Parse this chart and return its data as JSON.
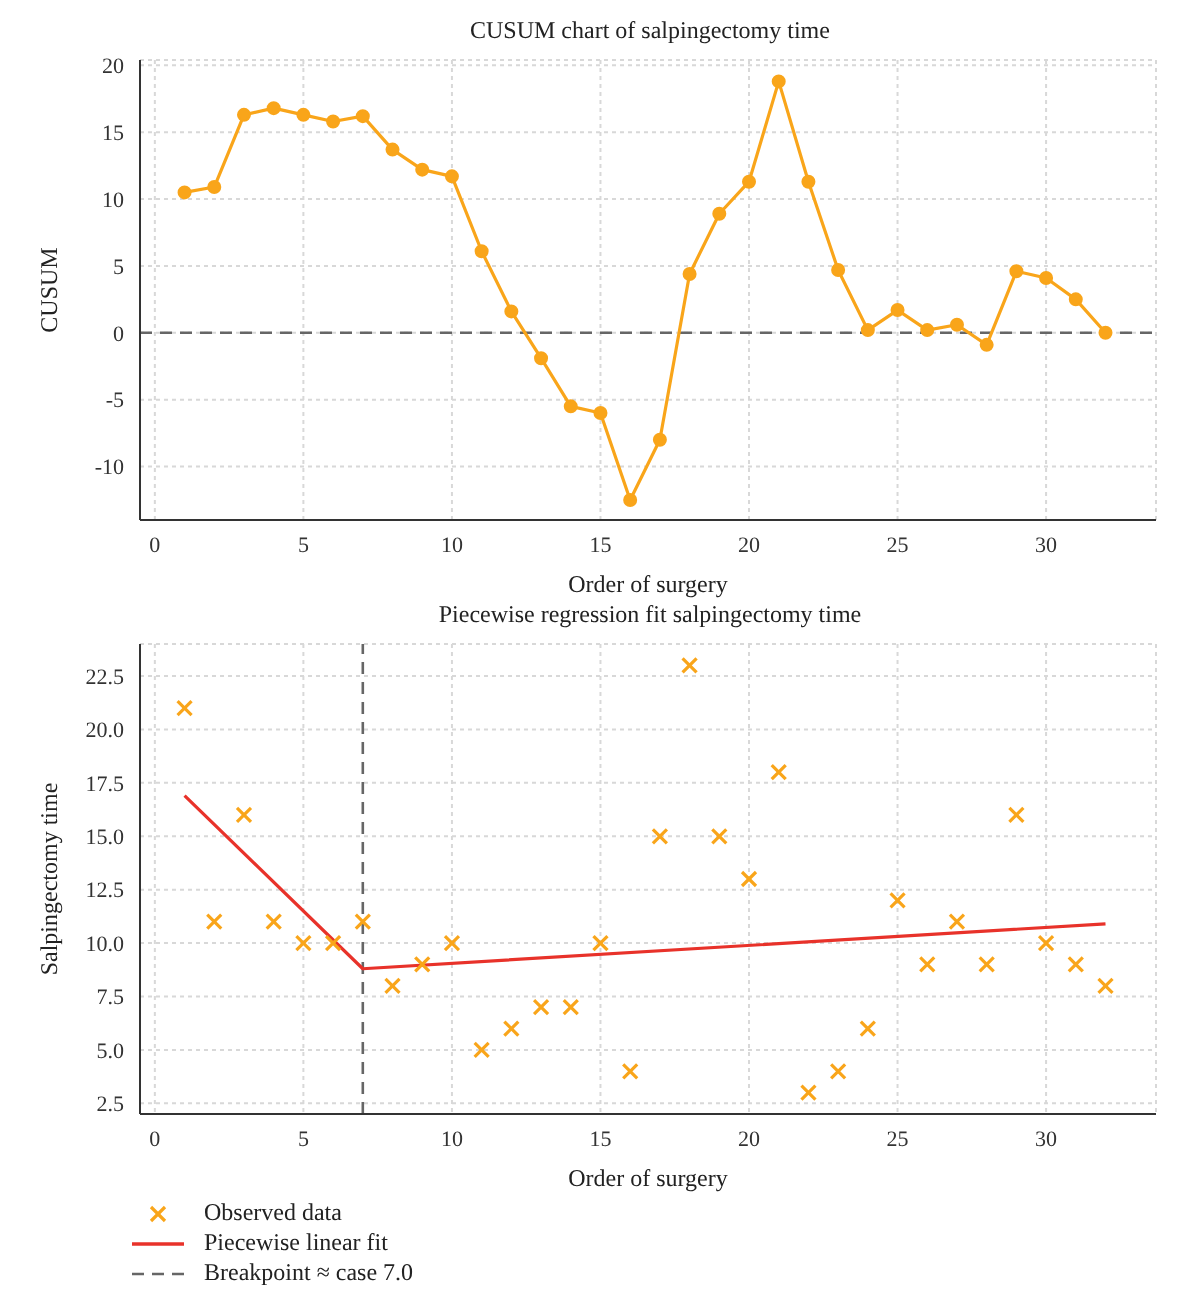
{
  "chart_data": [
    {
      "type": "line",
      "title": "CUSUM chart of salpingectomy time",
      "xlabel": "Order of surgery",
      "ylabel": "CUSUM",
      "x": [
        1,
        2,
        3,
        4,
        5,
        6,
        7,
        8,
        9,
        10,
        11,
        12,
        13,
        14,
        15,
        16,
        17,
        18,
        19,
        20,
        21,
        22,
        23,
        24,
        25,
        26,
        27,
        28,
        29,
        30,
        31,
        32
      ],
      "values": [
        10.5,
        10.9,
        16.3,
        16.8,
        16.3,
        15.8,
        16.2,
        13.7,
        12.2,
        11.7,
        6.1,
        1.6,
        -1.9,
        -5.5,
        -6.0,
        -12.5,
        -8.0,
        4.4,
        8.9,
        11.3,
        18.8,
        11.3,
        4.7,
        0.2,
        1.7,
        0.2,
        0.6,
        -0.9,
        4.6,
        4.1,
        2.5,
        0.0
      ],
      "color": "#f9a51a",
      "marker": "circle",
      "xlim": [
        -0.5,
        33.7
      ],
      "xticks": [
        0,
        5,
        10,
        15,
        20,
        25,
        30
      ],
      "ylim": [
        -14,
        20.4
      ],
      "yticks": [
        -10,
        -5,
        0,
        5,
        10,
        15,
        20
      ],
      "ref_lines": [
        {
          "axis": "y",
          "value": 0,
          "color": "#666666",
          "line_style": "dashed"
        }
      ],
      "grid": true
    },
    {
      "type": "scatter",
      "title": "Piecewise regression fit salpingectomy time",
      "xlabel": "Order of surgery",
      "ylabel": "Salpingectomy time",
      "x": [
        1,
        2,
        3,
        4,
        5,
        6,
        7,
        8,
        9,
        10,
        11,
        12,
        13,
        14,
        15,
        16,
        17,
        18,
        19,
        20,
        21,
        22,
        23,
        24,
        25,
        26,
        27,
        28,
        29,
        30,
        31,
        32
      ],
      "series": [
        {
          "name": "Observed data",
          "color": "#f9a51a",
          "marker": "cross",
          "values": [
            21,
            11,
            16,
            11,
            10,
            10,
            11,
            8,
            9,
            10,
            5,
            6,
            7,
            7,
            10,
            4,
            15,
            23,
            15,
            13,
            18,
            3,
            4,
            6,
            12,
            9,
            11,
            9,
            16,
            10,
            9,
            8
          ]
        },
        {
          "name": "Piecewise linear fit",
          "type": "line",
          "color": "#e8322a",
          "marker": "none",
          "x": [
            1,
            7,
            32
          ],
          "values": [
            16.9,
            8.8,
            10.9
          ]
        }
      ],
      "xlim": [
        -0.5,
        33.7
      ],
      "xticks": [
        0,
        5,
        10,
        15,
        20,
        25,
        30
      ],
      "ylim": [
        2,
        24
      ],
      "yticks": [
        {
          "value": 2.5,
          "label": "2.5"
        },
        {
          "value": 5,
          "label": "5.0"
        },
        {
          "value": 7.5,
          "label": "7.5"
        },
        {
          "value": 10,
          "label": "10.0"
        },
        {
          "value": 12.5,
          "label": "12.5"
        },
        {
          "value": 15,
          "label": "15.0"
        },
        {
          "value": 17.5,
          "label": "17.5"
        },
        {
          "value": 20,
          "label": "20.0"
        },
        {
          "value": 22.5,
          "label": "22.5"
        }
      ],
      "ref_lines": [
        {
          "axis": "x",
          "value": 7,
          "label": "Breakpoint ≈ case 7.0",
          "color": "#666666",
          "line_style": "dashed"
        }
      ],
      "grid": true,
      "legend": "bottom left"
    }
  ]
}
